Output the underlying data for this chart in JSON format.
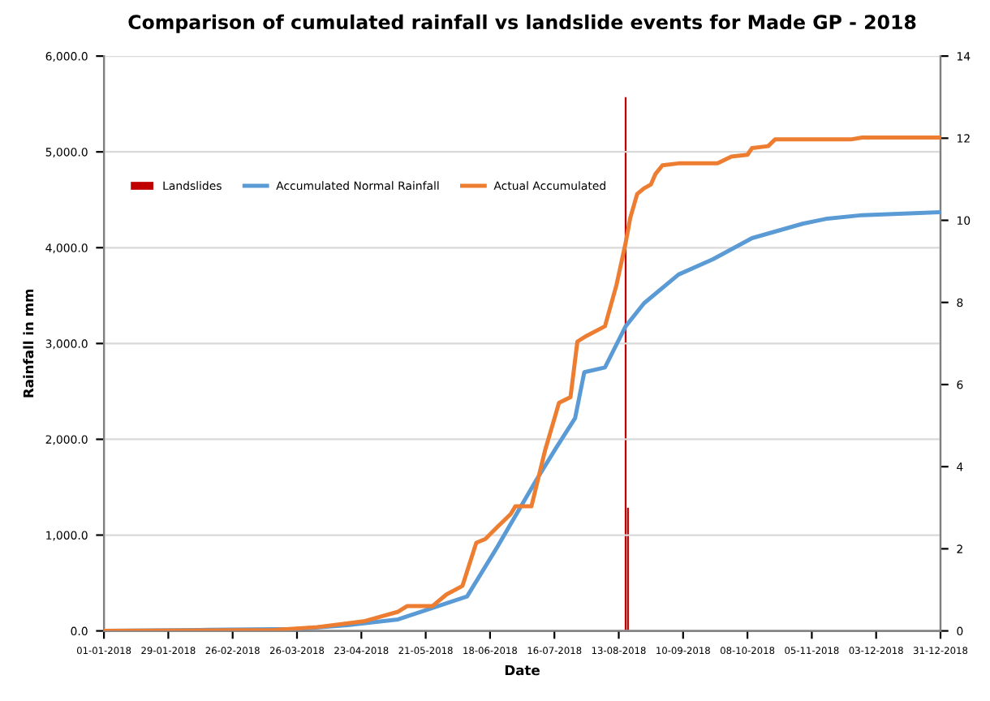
{
  "chart_data": {
    "type": "line",
    "title": "Comparison of cumulated rainfall vs landslide events for Made GP - 2018",
    "xlabel": "Date",
    "ylabel": "Rainfall in mm",
    "xlim": [
      "2018-01-01",
      "2018-12-31"
    ],
    "xticks": [
      {
        "value": "2018-01-01",
        "label": "01-01-2018"
      },
      {
        "value": "2018-01-29",
        "label": "29-01-2018"
      },
      {
        "value": "2018-02-26",
        "label": "26-02-2018"
      },
      {
        "value": "2018-03-26",
        "label": "26-03-2018"
      },
      {
        "value": "2018-04-23",
        "label": "23-04-2018"
      },
      {
        "value": "2018-05-21",
        "label": "21-05-2018"
      },
      {
        "value": "2018-06-18",
        "label": "18-06-2018"
      },
      {
        "value": "2018-07-16",
        "label": "16-07-2018"
      },
      {
        "value": "2018-08-13",
        "label": "13-08-2018"
      },
      {
        "value": "2018-09-10",
        "label": "10-09-2018"
      },
      {
        "value": "2018-10-08",
        "label": "08-10-2018"
      },
      {
        "value": "2018-11-05",
        "label": "05-11-2018"
      },
      {
        "value": "2018-12-03",
        "label": "03-12-2018"
      },
      {
        "value": "2018-12-31",
        "label": "31-12-2018"
      }
    ],
    "ylim": [
      0,
      6000
    ],
    "yticks": [
      {
        "value": 0,
        "label": "0.0"
      },
      {
        "value": 1000,
        "label": "1,000.0"
      },
      {
        "value": 2000,
        "label": "2,000.0"
      },
      {
        "value": 3000,
        "label": "3,000.0"
      },
      {
        "value": 4000,
        "label": "4,000.0"
      },
      {
        "value": 5000,
        "label": "5,000.0"
      },
      {
        "value": 6000,
        "label": "6,000.0"
      }
    ],
    "y2lim": [
      0,
      14
    ],
    "y2ticks": [
      0,
      2,
      4,
      6,
      8,
      10,
      12,
      14
    ],
    "grid": "y",
    "legend": "top left",
    "marker": "none",
    "line_style": "solid",
    "series": [
      {
        "name": "Landslides",
        "type": "bar",
        "axis": "y2",
        "color": "#c00000",
        "x": [
          "2018-08-16",
          "2018-08-17"
        ],
        "values": [
          13,
          3
        ]
      },
      {
        "name": "Accumulated Normal Rainfall",
        "color": "#5b9bd5",
        "x": [
          "2018-01-01",
          "2018-02-12",
          "2018-03-26",
          "2018-04-17",
          "2018-05-09",
          "2018-06-08",
          "2018-06-21",
          "2018-07-08",
          "2018-07-17",
          "2018-07-25",
          "2018-07-29",
          "2018-08-07",
          "2018-08-16",
          "2018-08-24",
          "2018-09-08",
          "2018-09-23",
          "2018-10-10",
          "2018-11-01",
          "2018-11-11",
          "2018-11-27",
          "2018-12-31"
        ],
        "values": [
          0,
          10,
          20,
          60,
          120,
          360,
          870,
          1570,
          1920,
          2220,
          2700,
          2750,
          3180,
          3420,
          3720,
          3880,
          4100,
          4250,
          4300,
          4340,
          4370
        ]
      },
      {
        "name": "Actual Accumulated",
        "color": "#ed7d31",
        "x": [
          "2018-01-01",
          "2018-03-16",
          "2018-04-04",
          "2018-04-24",
          "2018-05-09",
          "2018-05-13",
          "2018-05-24",
          "2018-05-30",
          "2018-06-06",
          "2018-06-12",
          "2018-06-16",
          "2018-06-21",
          "2018-06-27",
          "2018-06-29",
          "2018-07-06",
          "2018-07-12",
          "2018-07-18",
          "2018-07-23",
          "2018-07-26",
          "2018-07-30",
          "2018-08-07",
          "2018-08-12",
          "2018-08-16",
          "2018-08-18",
          "2018-08-21",
          "2018-08-24",
          "2018-08-27",
          "2018-08-29",
          "2018-09-01",
          "2018-09-08",
          "2018-09-25",
          "2018-10-01",
          "2018-10-08",
          "2018-10-10",
          "2018-10-17",
          "2018-10-20",
          "2018-11-22",
          "2018-11-27",
          "2018-12-31"
        ],
        "values": [
          0,
          10,
          40,
          100,
          200,
          260,
          260,
          380,
          470,
          920,
          960,
          1080,
          1220,
          1300,
          1300,
          1890,
          2380,
          2440,
          3020,
          3080,
          3180,
          3610,
          4050,
          4310,
          4560,
          4620,
          4660,
          4770,
          4860,
          4880,
          4880,
          4950,
          4970,
          5040,
          5060,
          5130,
          5130,
          5150,
          5150
        ]
      }
    ]
  }
}
